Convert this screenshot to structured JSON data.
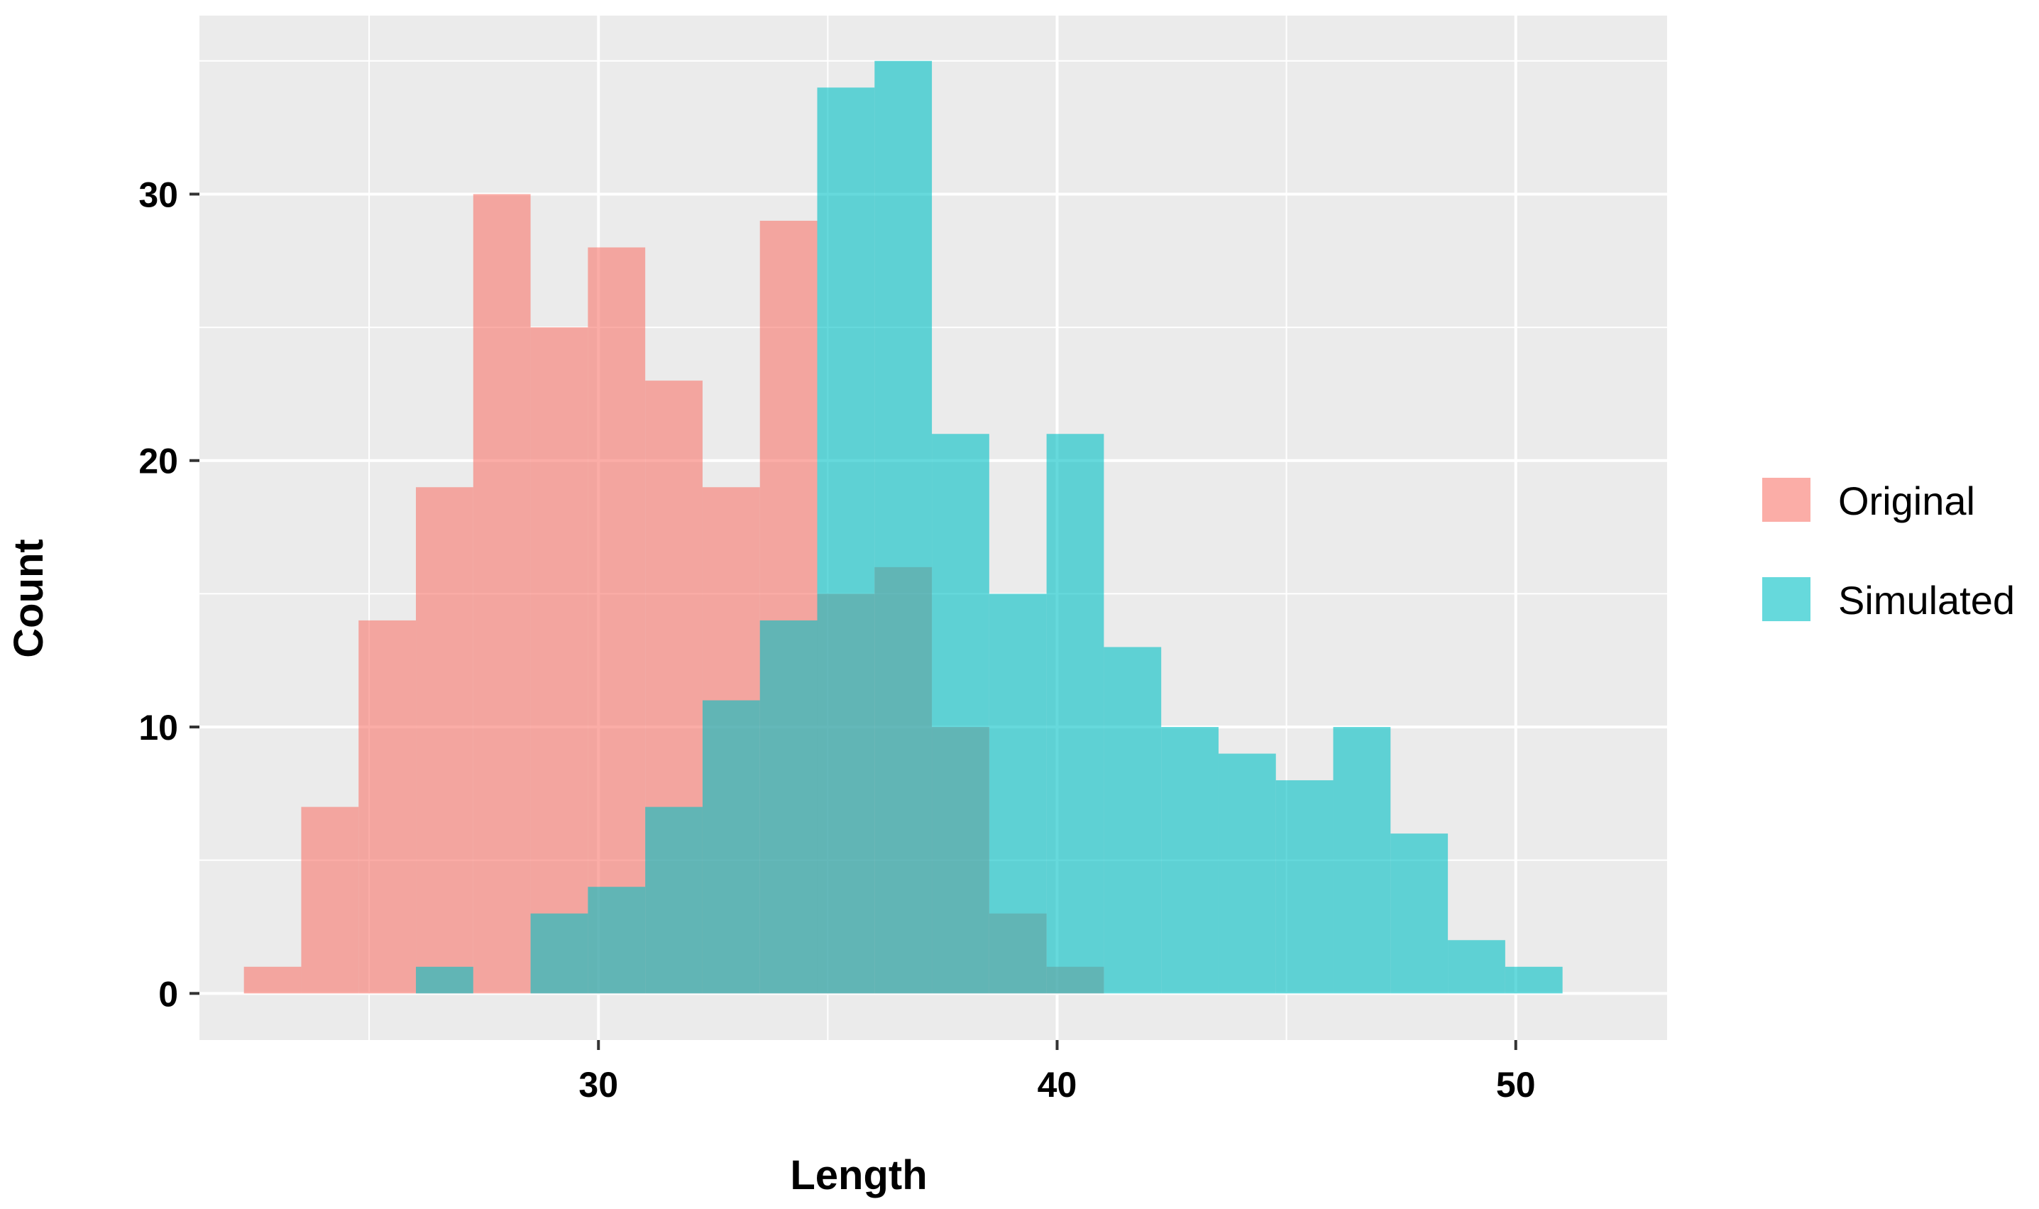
{
  "chart_data": {
    "type": "histogram",
    "xlabel": "Length",
    "ylabel": "Count",
    "xlim": [
      21.3,
      53.3
    ],
    "ylim": [
      -1.75,
      36.7
    ],
    "x_ticks": [
      30,
      40,
      50
    ],
    "x_ticks_labels": [
      "30",
      "40",
      "50"
    ],
    "y_ticks": [
      0,
      10,
      20,
      30
    ],
    "y_ticks_labels": [
      "0",
      "10",
      "20",
      "30"
    ],
    "grid": true,
    "legend_position": "right",
    "bin_edges": [
      22.27,
      23.52,
      24.77,
      26.02,
      27.27,
      28.52,
      29.77,
      31.02,
      32.27,
      33.52,
      34.77,
      36.02,
      37.27,
      38.52,
      39.77,
      41.02,
      42.27,
      43.52,
      44.77,
      46.02,
      47.27,
      48.52,
      49.77,
      51.02,
      52.27
    ],
    "series": [
      {
        "name": "Original",
        "color": "#F8766D",
        "opacity": 0.6,
        "counts": [
          1,
          7,
          14,
          19,
          30,
          25,
          28,
          23,
          19,
          29,
          15,
          16,
          10,
          3,
          1,
          0,
          0,
          0,
          0,
          0,
          0,
          0,
          0,
          0
        ]
      },
      {
        "name": "Simulated",
        "color": "#00BFC4",
        "opacity": 0.6,
        "counts": [
          0,
          0,
          0,
          1,
          0,
          3,
          4,
          7,
          11,
          14,
          34,
          35,
          21,
          15,
          21,
          13,
          10,
          9,
          8,
          10,
          6,
          2,
          1,
          0
        ]
      }
    ]
  }
}
